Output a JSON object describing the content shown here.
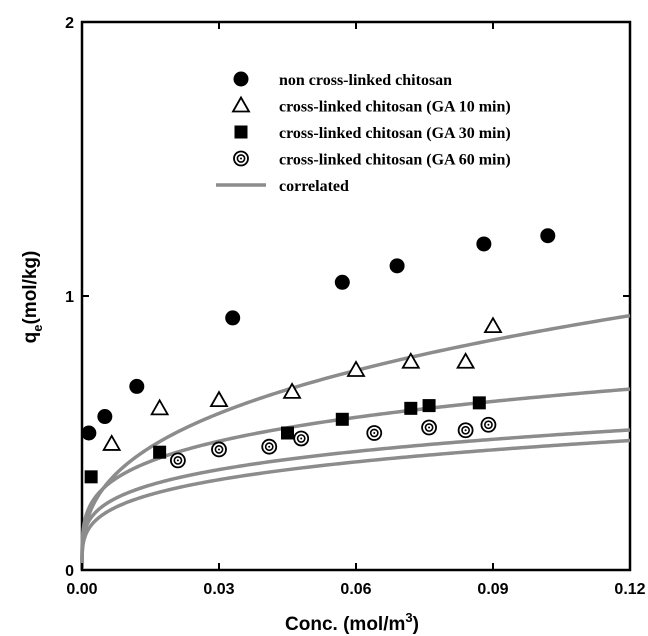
{
  "chart_data": {
    "type": "scatter",
    "xlabel": "Conc. (mol/m³)",
    "ylabel_main": "q",
    "ylabel_sub": "e",
    "ylabel_rest": "(mol/kg)",
    "xlabel_main": "Conc. (mol/m",
    "xlabel_sup": "3",
    "xlabel_end": ")",
    "xlim": [
      0,
      0.12
    ],
    "ylim": [
      0,
      2
    ],
    "x_ticks": [
      0,
      0.03,
      0.06,
      0.09,
      0.12
    ],
    "x_tick_labels": [
      "0.00",
      "0.03",
      "0.06",
      "0.09",
      "0.12"
    ],
    "y_ticks": [
      0,
      1,
      2
    ],
    "y_tick_labels": [
      "0",
      "1",
      "2"
    ],
    "legend_position": "top-right",
    "grid": false,
    "series": [
      {
        "name": "non cross-linked chitosan",
        "marker": "filled-circle",
        "points": [
          [
            0.0015,
            0.5
          ],
          [
            0.005,
            0.56
          ],
          [
            0.012,
            0.67
          ],
          [
            0.033,
            0.92
          ],
          [
            0.057,
            1.05
          ],
          [
            0.069,
            1.11
          ],
          [
            0.088,
            1.19
          ],
          [
            0.102,
            1.22
          ]
        ]
      },
      {
        "name": "cross-linked chitosan (GA 10 min)",
        "marker": "open-triangle",
        "points": [
          [
            0.0065,
            0.46
          ],
          [
            0.017,
            0.59
          ],
          [
            0.03,
            0.62
          ],
          [
            0.046,
            0.65
          ],
          [
            0.06,
            0.73
          ],
          [
            0.072,
            0.76
          ],
          [
            0.084,
            0.76
          ],
          [
            0.09,
            0.89
          ]
        ]
      },
      {
        "name": "cross-linked chitosan (GA 30 min)",
        "marker": "filled-square",
        "points": [
          [
            0.002,
            0.34
          ],
          [
            0.017,
            0.43
          ],
          [
            0.045,
            0.5
          ],
          [
            0.057,
            0.55
          ],
          [
            0.072,
            0.59
          ],
          [
            0.076,
            0.6
          ],
          [
            0.087,
            0.61
          ]
        ]
      },
      {
        "name": "cross-linked chitosan (GA 60 min)",
        "marker": "double-circle",
        "points": [
          [
            0.021,
            0.4
          ],
          [
            0.03,
            0.44
          ],
          [
            0.041,
            0.45
          ],
          [
            0.048,
            0.48
          ],
          [
            0.064,
            0.5
          ],
          [
            0.076,
            0.52
          ],
          [
            0.084,
            0.51
          ],
          [
            0.089,
            0.53
          ]
        ]
      },
      {
        "name": "correlated",
        "marker": "line",
        "curves": [
          {
            "k": 1.95,
            "n": 0.35
          },
          {
            "k": 1.11,
            "n": 0.245
          },
          {
            "k": 0.85,
            "n": 0.24
          },
          {
            "k": 0.82,
            "n": 0.26
          }
        ]
      }
    ],
    "colors": {
      "marker": "#000000",
      "curve": "#8c8c8c",
      "axis": "#000000"
    }
  }
}
